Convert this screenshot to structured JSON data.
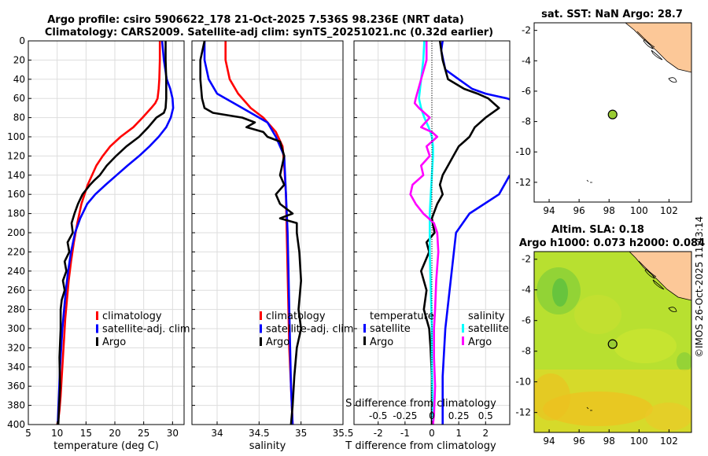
{
  "header": {
    "title_line1": "Argo profile: csiro 5906622_178 21-Oct-2025 7.536S 98.236E (NRT data)",
    "title_line2": "Climatology: CARS2009. Satellite-adj clim: synTS_20251021.nc (0.32d earlier)"
  },
  "colors": {
    "climatology": "#ff0000",
    "satellite": "#0000ff",
    "argo": "#000000",
    "sal_sat": "#00ffff",
    "sal_argo": "#ff00ff"
  },
  "chart_data": [
    {
      "type": "line",
      "name": "temperature",
      "xlabel": "temperature (deg C)",
      "xlim": [
        5,
        32
      ],
      "xticks": [
        5,
        10,
        15,
        20,
        25,
        30
      ],
      "ylim": [
        0,
        400
      ],
      "yticks": [
        0,
        20,
        40,
        60,
        80,
        100,
        120,
        140,
        160,
        180,
        200,
        220,
        240,
        260,
        280,
        300,
        320,
        340,
        360,
        380,
        400
      ],
      "legend": [
        "climatology",
        "satellite-adj. clim",
        "Argo"
      ],
      "series": [
        {
          "name": "climatology",
          "color": "#ff0000",
          "x": [
            27.8,
            27.8,
            27.7,
            27.6,
            27.4,
            27.0,
            26.3,
            24.8,
            23.2,
            21.0,
            19.2,
            17.9,
            16.8,
            15.3,
            14.2,
            13.5,
            12.9,
            12.4,
            12.0,
            11.7,
            11.4,
            11.2,
            11.0,
            10.8,
            10.6,
            10.4,
            10.2,
            10.0
          ],
          "y": [
            0,
            20,
            40,
            50,
            60,
            65,
            70,
            80,
            90,
            100,
            110,
            120,
            130,
            150,
            170,
            190,
            210,
            230,
            250,
            270,
            290,
            310,
            330,
            350,
            370,
            385,
            395,
            400
          ]
        },
        {
          "name": "satellite-adj. clim",
          "color": "#0000ff",
          "x": [
            28.2,
            28.5,
            29.0,
            29.6,
            30.0,
            30.1,
            29.7,
            28.9,
            27.6,
            26.0,
            24.2,
            22.2,
            20.3,
            18.4,
            16.6,
            15.2,
            14.0,
            13.1,
            12.4,
            11.9,
            11.5,
            11.2,
            10.9,
            10.7,
            10.5,
            10.3,
            10.1
          ],
          "y": [
            0,
            20,
            40,
            50,
            60,
            70,
            80,
            90,
            100,
            110,
            120,
            130,
            140,
            150,
            160,
            170,
            185,
            200,
            220,
            240,
            260,
            280,
            300,
            320,
            340,
            370,
            400
          ]
        },
        {
          "name": "Argo",
          "color": "#000000",
          "x": [
            28.8,
            28.8,
            28.9,
            28.9,
            28.8,
            28.5,
            27.2,
            25.8,
            24.2,
            22.0,
            20.2,
            18.6,
            17.4,
            16.5,
            15.7,
            14.4,
            13.6,
            13.0,
            12.5,
            12.7,
            11.8,
            12.1,
            11.3,
            11.6,
            11.0,
            11.3,
            10.8,
            10.6,
            10.6,
            10.4,
            10.5,
            10.3,
            10.2
          ],
          "y": [
            0,
            20,
            40,
            60,
            70,
            75,
            80,
            90,
            100,
            110,
            120,
            130,
            140,
            145,
            150,
            160,
            170,
            180,
            190,
            200,
            210,
            220,
            230,
            240,
            250,
            260,
            270,
            280,
            300,
            330,
            360,
            385,
            400
          ]
        }
      ]
    },
    {
      "type": "line",
      "name": "salinity",
      "xlabel": "salinity",
      "xlim": [
        33.7,
        35.5
      ],
      "xticks": [
        34,
        34.5,
        35,
        35.5
      ],
      "ylim": [
        0,
        400
      ],
      "legend": [
        "climatology",
        "satellite-adj. clim",
        "Argo"
      ],
      "series": [
        {
          "name": "climatology",
          "color": "#ff0000",
          "x": [
            34.1,
            34.1,
            34.15,
            34.25,
            34.4,
            34.55,
            34.7,
            34.78,
            34.8,
            34.82,
            34.83,
            34.84,
            34.85,
            34.86,
            34.88,
            34.9
          ],
          "y": [
            0,
            20,
            40,
            55,
            70,
            80,
            95,
            110,
            130,
            160,
            200,
            240,
            280,
            320,
            360,
            400
          ]
        },
        {
          "name": "satellite-adj. clim",
          "color": "#0000ff",
          "x": [
            33.85,
            33.85,
            33.9,
            34.0,
            34.2,
            34.4,
            34.6,
            34.7,
            34.8,
            34.82,
            34.84,
            34.85,
            34.86,
            34.87,
            34.88,
            34.9
          ],
          "y": [
            0,
            20,
            40,
            55,
            65,
            75,
            85,
            100,
            120,
            160,
            200,
            240,
            280,
            320,
            360,
            400
          ]
        },
        {
          "name": "Argo",
          "color": "#000000",
          "x": [
            33.85,
            33.8,
            33.8,
            33.82,
            33.85,
            33.95,
            34.3,
            34.45,
            34.35,
            34.55,
            34.6,
            34.75,
            34.8,
            34.75,
            34.8,
            34.7,
            34.75,
            34.9,
            34.75,
            34.95,
            34.95,
            34.98,
            35.0,
            34.97,
            35.0,
            34.95,
            34.92,
            34.9,
            34.88
          ],
          "y": [
            0,
            20,
            40,
            60,
            70,
            75,
            80,
            85,
            90,
            95,
            100,
            105,
            120,
            140,
            150,
            160,
            170,
            180,
            185,
            190,
            200,
            220,
            250,
            280,
            300,
            320,
            350,
            380,
            400
          ]
        }
      ]
    },
    {
      "type": "line",
      "name": "differences",
      "xlabel": "T difference from climatology",
      "xlabel_top": "S difference from climatology",
      "xlim": [
        -2.9,
        2.9
      ],
      "xticks": [
        -2,
        -1,
        0,
        1,
        2
      ],
      "xticks_top": [
        "-0.5",
        "-0.25",
        "0",
        "0.25",
        "0.5"
      ],
      "xticks_top_values": [
        -0.5,
        -0.25,
        0,
        0.25,
        0.5
      ],
      "xlim_top": [
        -0.725,
        0.725
      ],
      "ylim": [
        0,
        400
      ],
      "legend_left": [
        "temperature",
        "satellite",
        "Argo"
      ],
      "legend_right": [
        "salinity",
        "satellite",
        "Argo"
      ],
      "series": [
        {
          "name": "T satellite",
          "color": "#0000ff",
          "axis": "bottom",
          "x": [
            0.4,
            0.35,
            0.5,
            1.0,
            1.5,
            2.0,
            2.8,
            3.3
          ],
          "y": [
            0,
            10,
            30,
            40,
            50,
            55,
            60,
            65
          ]
        },
        {
          "name": "T satellite deep",
          "color": "#0000ff",
          "axis": "bottom",
          "x": [
            2.9,
            2.5,
            1.4,
            0.9,
            0.7,
            0.5,
            0.4,
            0.4
          ],
          "y": [
            140,
            160,
            180,
            200,
            250,
            300,
            350,
            400
          ]
        },
        {
          "name": "T Argo",
          "color": "#000000",
          "axis": "bottom",
          "x": [
            0.3,
            0.4,
            0.6,
            1.2,
            1.7,
            2.1,
            2.3,
            2.5,
            2.0,
            1.6,
            1.4,
            1.2,
            1.0,
            0.8,
            0.6,
            0.4,
            0.3,
            0.4,
            0.2,
            0.0,
            0.1,
            -0.2,
            -0.1,
            -0.4,
            -0.2,
            -0.3,
            -0.1,
            -0.05,
            0.0,
            0.0,
            0.0
          ],
          "y": [
            0,
            20,
            40,
            50,
            55,
            60,
            65,
            70,
            80,
            90,
            100,
            105,
            110,
            120,
            130,
            140,
            150,
            160,
            170,
            185,
            200,
            210,
            220,
            240,
            260,
            280,
            300,
            320,
            350,
            380,
            400
          ]
        },
        {
          "name": "S satellite",
          "color": "#00ffff",
          "axis": "top",
          "x": [
            -0.07,
            -0.08,
            -0.1,
            -0.12,
            -0.1,
            -0.07,
            -0.03,
            0.0,
            0.01,
            0.01,
            0.0,
            -0.01,
            -0.02,
            -0.02,
            -0.01,
            0.0,
            0.0,
            0.01
          ],
          "y": [
            0,
            20,
            40,
            60,
            70,
            80,
            90,
            100,
            110,
            120,
            140,
            160,
            180,
            220,
            260,
            300,
            340,
            400
          ]
        },
        {
          "name": "S Argo",
          "color": "#ff00ff",
          "axis": "top",
          "x": [
            -0.05,
            -0.05,
            -0.1,
            -0.15,
            -0.16,
            -0.12,
            -0.02,
            -0.1,
            0.0,
            0.05,
            -0.05,
            -0.02,
            -0.1,
            -0.08,
            -0.18,
            -0.2,
            -0.15,
            -0.08,
            0.02,
            0.05,
            0.06,
            0.04,
            0.03,
            0.02,
            0.02,
            0.03,
            0.02,
            0.01
          ],
          "y": [
            0,
            20,
            40,
            60,
            65,
            70,
            80,
            90,
            95,
            100,
            110,
            120,
            130,
            140,
            150,
            160,
            170,
            180,
            190,
            200,
            220,
            250,
            280,
            300,
            330,
            360,
            390,
            400
          ]
        }
      ]
    }
  ],
  "maps": [
    {
      "title": "sat. SST: NaN Argo: 28.7",
      "xticks": [
        "94",
        "96",
        "98",
        "100",
        "102"
      ],
      "yticks": [
        "-2",
        "-4",
        "-6",
        "-8",
        "-10",
        "-12"
      ],
      "lon": [
        93,
        103.5
      ],
      "lat": [
        -1.5,
        -13.3
      ],
      "argo_lon": 98.236,
      "argo_lat": -7.536
    },
    {
      "title_line1": "Altim. SLA: 0.18",
      "title_line2": "Argo h1000: 0.073 h2000: 0.084",
      "xticks": [
        "94",
        "96",
        "98",
        "100",
        "102"
      ],
      "yticks": [
        "-2",
        "-4",
        "-6",
        "-8",
        "-10",
        "-12"
      ],
      "lon": [
        93,
        103.5
      ],
      "lat": [
        -1.5,
        -13.3
      ],
      "argo_lon": 98.236,
      "argo_lat": -7.536
    }
  ],
  "footer": {
    "stamp": "©IMOS 26-Oct-2025 11:43:14"
  }
}
